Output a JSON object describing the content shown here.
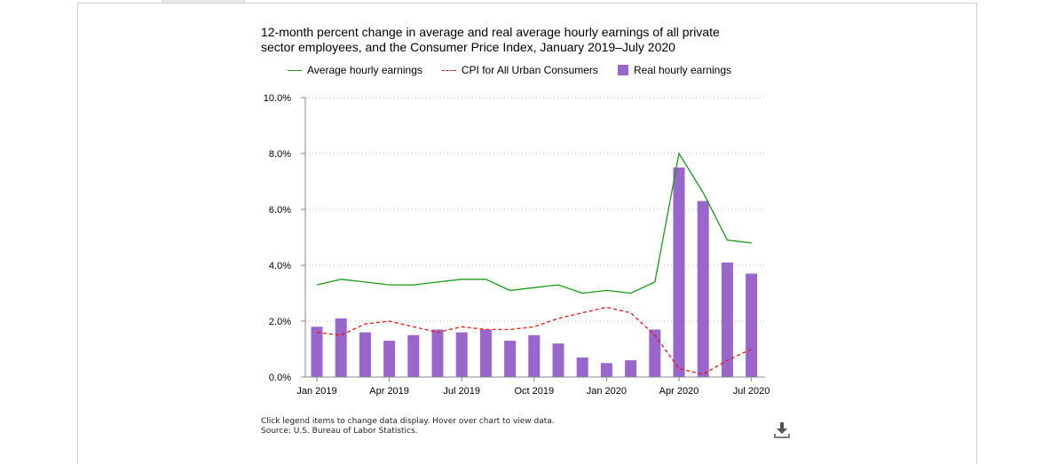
{
  "chart_data": {
    "type": "bar+line",
    "title_lines": [
      "12-month percent change in average and real average hourly earnings of all private",
      "sector employees, and the Consumer Price Index, January 2019–July 2020"
    ],
    "ylim": [
      0,
      10
    ],
    "y_ticks": [
      {
        "value": 0,
        "label": "0.0%"
      },
      {
        "value": 2,
        "label": "2.0%"
      },
      {
        "value": 4,
        "label": "4.0%"
      },
      {
        "value": 6,
        "label": "6.0%"
      },
      {
        "value": 8,
        "label": "8.0%"
      },
      {
        "value": 10,
        "label": "10.0%"
      }
    ],
    "x_tick_labels": [
      {
        "index": 0,
        "label": "Jan 2019"
      },
      {
        "index": 3,
        "label": "Apr 2019"
      },
      {
        "index": 6,
        "label": "Jul 2019"
      },
      {
        "index": 9,
        "label": "Oct 2019"
      },
      {
        "index": 12,
        "label": "Jan 2020"
      },
      {
        "index": 15,
        "label": "Apr 2020"
      },
      {
        "index": 18,
        "label": "Jul 2020"
      }
    ],
    "months": [
      "Jan 2019",
      "Feb 2019",
      "Mar 2019",
      "Apr 2019",
      "May 2019",
      "Jun 2019",
      "Jul 2019",
      "Aug 2019",
      "Sep 2019",
      "Oct 2019",
      "Nov 2019",
      "Dec 2019",
      "Jan 2020",
      "Feb 2020",
      "Mar 2020",
      "Apr 2020",
      "May 2020",
      "Jun 2020",
      "Jul 2020"
    ],
    "series": [
      {
        "name": "Average hourly earnings",
        "kind": "line",
        "color": "#1a9a1a",
        "values": [
          3.3,
          3.5,
          3.4,
          3.3,
          3.3,
          3.4,
          3.5,
          3.5,
          3.1,
          3.2,
          3.3,
          3.0,
          3.1,
          3.0,
          3.4,
          8.0,
          6.6,
          4.9,
          4.8
        ]
      },
      {
        "name": "CPI for All Urban Consumers",
        "kind": "dashed-line",
        "color": "#ee1111",
        "values": [
          1.6,
          1.5,
          1.9,
          2.0,
          1.8,
          1.6,
          1.8,
          1.7,
          1.7,
          1.8,
          2.1,
          2.3,
          2.5,
          2.3,
          1.5,
          0.3,
          0.1,
          0.6,
          1.0
        ]
      },
      {
        "name": "Real hourly earnings",
        "kind": "bar",
        "color": "#9966cc",
        "values": [
          1.8,
          2.1,
          1.6,
          1.3,
          1.5,
          1.7,
          1.6,
          1.7,
          1.3,
          1.5,
          1.2,
          0.7,
          0.5,
          0.6,
          1.7,
          7.5,
          6.3,
          4.1,
          3.7
        ]
      }
    ],
    "grid": "horizontal dotted",
    "legend_position": "top"
  },
  "footnote": {
    "line1": "Click legend items to change data display. Hover over chart to view data.",
    "line2": "Source: U.S. Bureau of Labor Statistics."
  },
  "icons": {
    "download": "download-icon"
  }
}
